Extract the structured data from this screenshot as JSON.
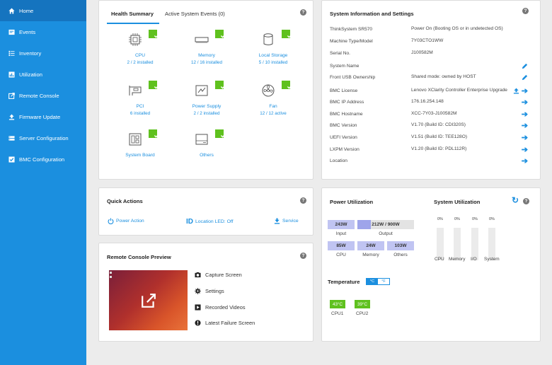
{
  "sidebar": {
    "items": [
      {
        "label": "Home",
        "icon": "home-icon"
      },
      {
        "label": "Events",
        "icon": "events-icon"
      },
      {
        "label": "Inventory",
        "icon": "inventory-icon"
      },
      {
        "label": "Utilization",
        "icon": "utilization-icon"
      },
      {
        "label": "Remote Console",
        "icon": "remote-console-icon"
      },
      {
        "label": "Firmware Update",
        "icon": "upload-icon"
      },
      {
        "label": "Server Configuration",
        "icon": "server-icon"
      },
      {
        "label": "BMC Configuration",
        "icon": "bmc-icon"
      }
    ],
    "bg_color": "#1b8fdf",
    "active_color": "#1574bf"
  },
  "health": {
    "tabs": [
      "Health Summary",
      "Active System Events (0)"
    ],
    "items": [
      {
        "name": "CPU",
        "value": "2 / 2 installed"
      },
      {
        "name": "Memory",
        "value": "12 / 16 installed"
      },
      {
        "name": "Local Storage",
        "value": "5 / 10 installed"
      },
      {
        "name": "PCI",
        "value": "6 installed"
      },
      {
        "name": "Power Supply",
        "value": "2 / 2 installed"
      },
      {
        "name": "Fan",
        "value": "12 / 12 active"
      },
      {
        "name": "System Board",
        "value": ""
      },
      {
        "name": "Others",
        "value": ""
      }
    ],
    "ok_color": "#5fc11e"
  },
  "sysinfo": {
    "title": "System Information and Settings",
    "rows": [
      {
        "label": "ThinkSystem SR570",
        "value": "Power On (Booting OS or in undetected OS)"
      },
      {
        "label": "Machine Type/Model",
        "value": "7Y03CTO1WW"
      },
      {
        "label": "Serial No.",
        "value": "J100582M"
      },
      {
        "label": "System Name",
        "value": ""
      },
      {
        "label": "Front USB Ownership",
        "value": "Shared mode: owned by HOST"
      },
      {
        "label": "BMC License",
        "value": "Lenovo XClarity Controller Enterprise Upgrade"
      },
      {
        "label": "BMC IP Address",
        "value": "176.16.254.148"
      },
      {
        "label": "BMC Hostname",
        "value": "XCC-7Y03-J100582M"
      },
      {
        "label": "BMC Version",
        "value": "V1.70 (Build ID: CDI320S)"
      },
      {
        "label": "UEFI Version",
        "value": "V1.51 (Build ID: TEE128O)"
      },
      {
        "label": "LXPM Version",
        "value": "V1.20 (Build ID: PDL112R)"
      },
      {
        "label": "Location",
        "value": ""
      }
    ]
  },
  "quick_actions": {
    "title": "Quick Actions",
    "power": "Power Action",
    "location": "Location LED: Off",
    "service": "Service"
  },
  "remote_console": {
    "title": "Remote Console Preview",
    "links": [
      "Capture Screen",
      "Settings",
      "Recorded Videos",
      "Latest Failure Screen"
    ]
  },
  "power": {
    "title": "Power Utilization",
    "input": "243W",
    "output": "212W / 900W",
    "output_fraction": 0.236,
    "cpu": "85W",
    "memory": "24W",
    "others": "103W",
    "labels": {
      "input": "Input",
      "output": "Output",
      "cpu": "CPU",
      "memory": "Memory",
      "others": "Others"
    },
    "box_color": "#c0c4f2",
    "fill_color": "#9ea4ea"
  },
  "system_util": {
    "title": "System Utilization",
    "items": [
      {
        "label": "CPU",
        "value": "0%"
      },
      {
        "label": "Memory",
        "value": "0%"
      },
      {
        "label": "I/O",
        "value": "0%"
      },
      {
        "label": "System",
        "value": "0%"
      }
    ]
  },
  "temperature": {
    "title": "Temperature",
    "unit_c": "°C",
    "unit_f": "°F",
    "items": [
      {
        "label": "CPU1",
        "value": "43°C"
      },
      {
        "label": "CPU2",
        "value": "39°C"
      }
    ]
  }
}
